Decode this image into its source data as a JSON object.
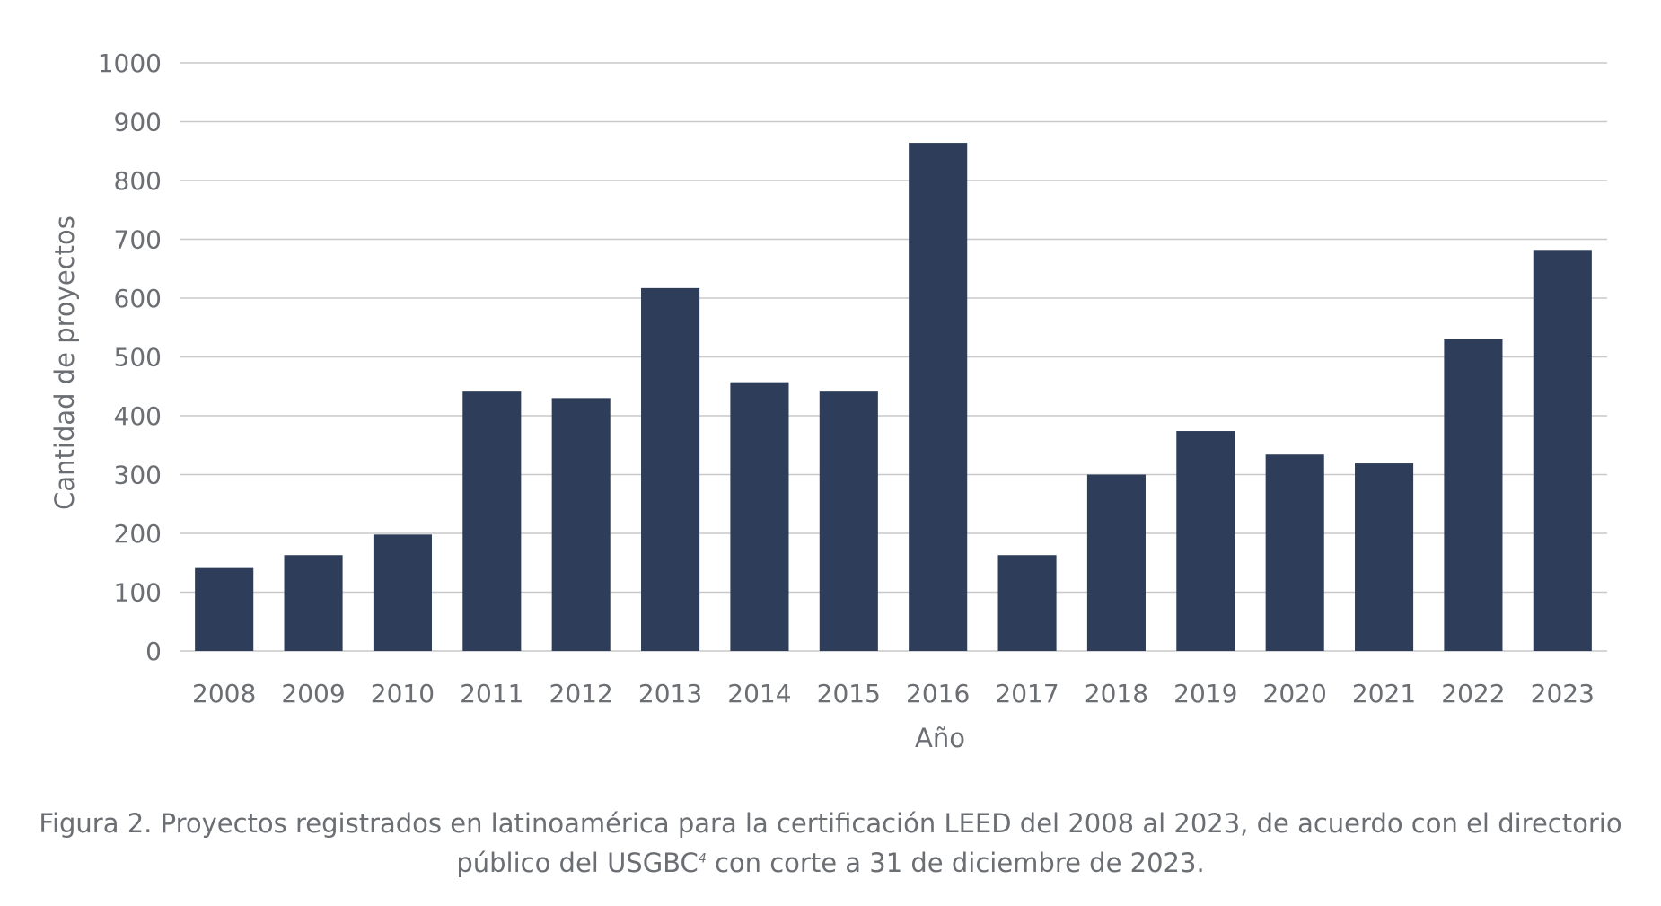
{
  "chart_data": {
    "type": "bar",
    "title": "",
    "categories": [
      "2008",
      "2009",
      "2010",
      "2011",
      "2012",
      "2013",
      "2014",
      "2015",
      "2016",
      "2017",
      "2018",
      "2019",
      "2020",
      "2021",
      "2022",
      "2023"
    ],
    "values": [
      141,
      163,
      198,
      441,
      430,
      617,
      457,
      441,
      864,
      163,
      300,
      374,
      334,
      319,
      530,
      682
    ],
    "xlabel": "Año",
    "ylabel": "Cantidad de proyectos",
    "ylim": [
      0,
      1000
    ],
    "yticks": [
      "0",
      "100",
      "200",
      "300",
      "400",
      "500",
      "600",
      "700",
      "800",
      "900",
      "1000"
    ],
    "grid": true,
    "bar_color": "#2e3e5a",
    "grid_color": "#c9c9c9",
    "text_color": "#6b6e73"
  },
  "caption": {
    "line1": "Figura 2. Proyectos registrados en latinoamérica para la certificación LEED del 2008 al 2023, de acuerdo con el directorio",
    "line2_pre": "público del USGBC",
    "line2_sup": "4",
    "line2_post": " con corte a 31 de diciembre de 2023."
  }
}
